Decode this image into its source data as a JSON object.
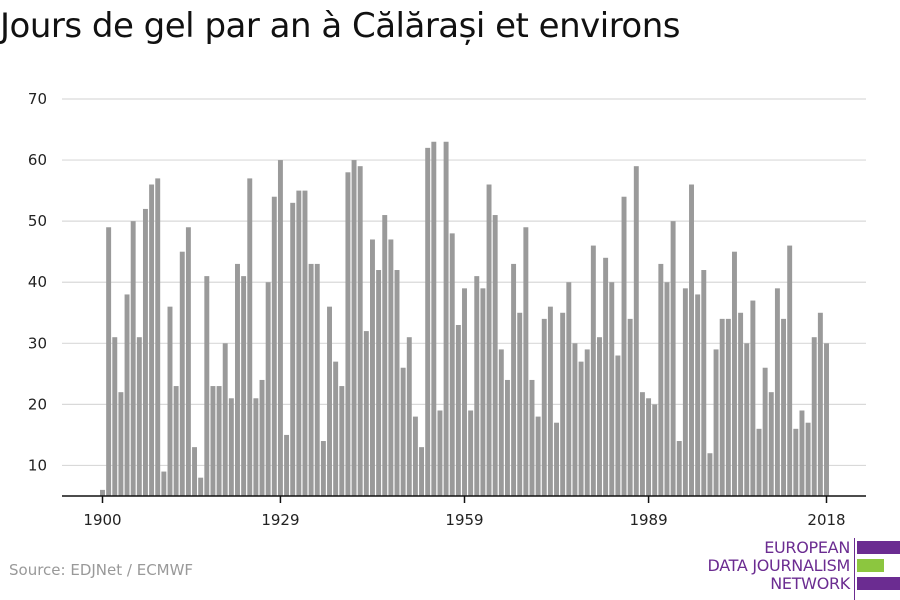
{
  "colors": {
    "bar": "#9a9a9a",
    "grid": "#d9d9d9",
    "axis": "#111111",
    "brand_purple": "#6b2c91",
    "brand_green": "#8cc63f"
  },
  "footer": {
    "source": "Source: EDJNet / ECMWF"
  },
  "logo": {
    "lines": [
      "EUROPEAN",
      "DATA JOURNALISM",
      "NETWORK"
    ]
  },
  "chart_data": {
    "type": "bar",
    "title": "Jours de gel par an à Călărași et environs",
    "xlabel": "",
    "ylabel": "",
    "ylim": [
      5,
      70
    ],
    "yticks": [
      10,
      20,
      30,
      40,
      50,
      60,
      70
    ],
    "xticks": [
      1900,
      1929,
      1959,
      1989,
      2018
    ],
    "grid": true,
    "x": [
      1900,
      1901,
      1902,
      1903,
      1904,
      1905,
      1906,
      1907,
      1908,
      1909,
      1910,
      1911,
      1912,
      1913,
      1914,
      1915,
      1916,
      1917,
      1918,
      1919,
      1920,
      1921,
      1922,
      1923,
      1924,
      1925,
      1926,
      1927,
      1928,
      1929,
      1930,
      1931,
      1932,
      1933,
      1934,
      1935,
      1936,
      1937,
      1938,
      1939,
      1940,
      1941,
      1942,
      1943,
      1944,
      1945,
      1946,
      1947,
      1948,
      1949,
      1950,
      1951,
      1952,
      1953,
      1954,
      1955,
      1956,
      1957,
      1958,
      1959,
      1960,
      1961,
      1962,
      1963,
      1964,
      1965,
      1966,
      1967,
      1968,
      1969,
      1970,
      1971,
      1972,
      1973,
      1974,
      1975,
      1976,
      1977,
      1978,
      1979,
      1980,
      1981,
      1982,
      1983,
      1984,
      1985,
      1986,
      1987,
      1988,
      1989,
      1990,
      1991,
      1992,
      1993,
      1994,
      1995,
      1996,
      1997,
      1998,
      1999,
      2000,
      2001,
      2002,
      2003,
      2004,
      2005,
      2006,
      2007,
      2008,
      2009,
      2010,
      2011,
      2012,
      2013,
      2014,
      2015,
      2016,
      2017,
      2018
    ],
    "values": [
      6,
      49,
      31,
      22,
      38,
      50,
      31,
      52,
      56,
      57,
      9,
      36,
      23,
      45,
      49,
      13,
      8,
      41,
      23,
      23,
      30,
      21,
      43,
      41,
      57,
      21,
      24,
      40,
      54,
      60,
      15,
      53,
      55,
      55,
      43,
      43,
      14,
      36,
      27,
      23,
      58,
      60,
      59,
      32,
      47,
      42,
      51,
      47,
      42,
      26,
      31,
      18,
      13,
      62,
      63,
      19,
      63,
      48,
      33,
      39,
      19,
      41,
      39,
      56,
      51,
      29,
      24,
      43,
      35,
      49,
      24,
      18,
      34,
      36,
      17,
      35,
      40,
      30,
      27,
      29,
      46,
      31,
      44,
      40,
      28,
      54,
      34,
      59,
      22,
      21,
      20,
      43,
      40,
      50,
      14,
      39,
      56,
      38,
      42,
      12,
      29,
      34,
      34,
      45,
      35,
      30,
      37,
      16,
      26,
      22,
      39,
      34,
      46,
      16,
      19,
      17,
      31,
      35,
      30
    ]
  }
}
